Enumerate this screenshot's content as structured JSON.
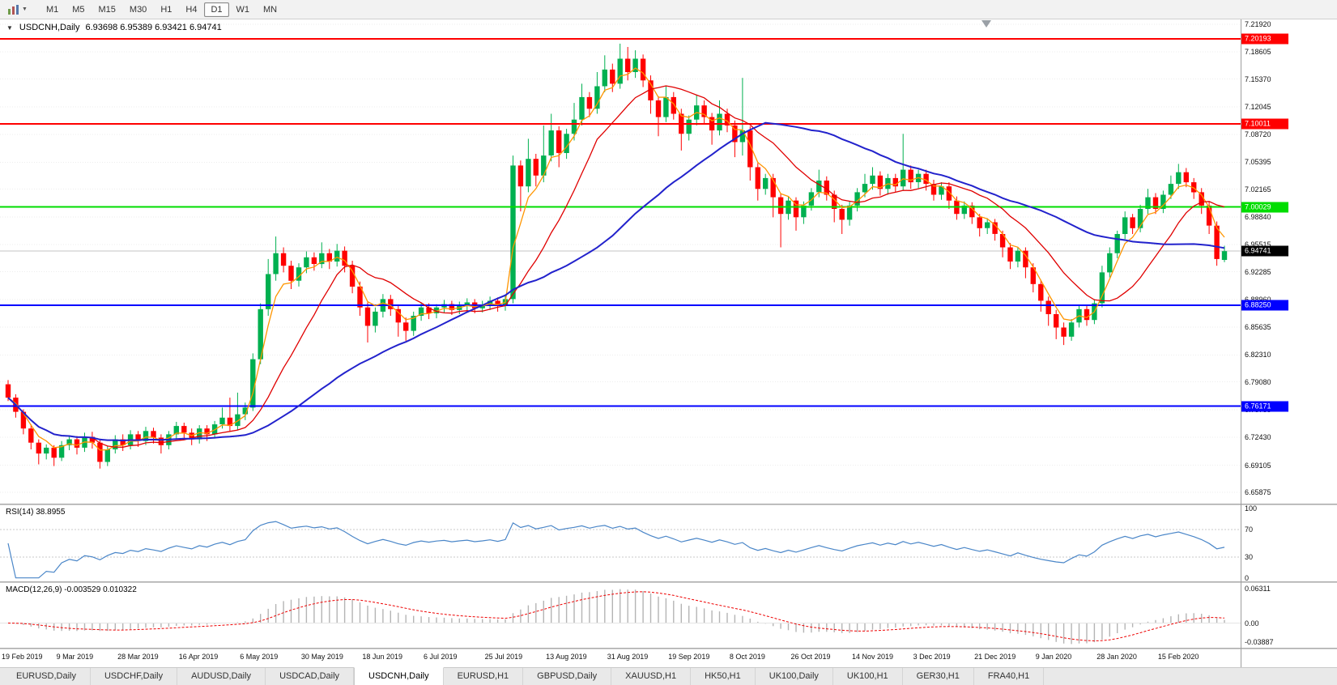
{
  "toolbar": {
    "timeframes": [
      "M1",
      "M5",
      "M15",
      "M30",
      "H1",
      "H4",
      "D1",
      "W1",
      "MN"
    ],
    "active_timeframe": "D1"
  },
  "tabs": {
    "items": [
      "EURUSD,Daily",
      "USDCHF,Daily",
      "AUDUSD,Daily",
      "USDCAD,Daily",
      "USDCNH,Daily",
      "EURUSD,H1",
      "GBPUSD,Daily",
      "XAUUSD,H1",
      "HK50,H1",
      "UK100,Daily",
      "UK100,H1",
      "GER30,H1",
      "FRA40,H1"
    ],
    "active": "USDCNH,Daily"
  },
  "colors": {
    "candle_up": "#00b050",
    "candle_down": "#ff0000",
    "rsi": "#4a86c8",
    "macd_hist": "#b4b4b4",
    "macd_signal": "#ee0000",
    "current_badge_bg": "#000000",
    "line_red": "#ff0000",
    "line_green": "#00dd00",
    "line_blue": "#0000ff"
  },
  "chart_data": {
    "type": "candlestick",
    "title": "USDCNH,Daily",
    "quote": "6.93698 6.95389 6.93421 6.94741",
    "last_quote": {
      "open": "6.93698",
      "high": "6.95389",
      "low": "6.93421",
      "close": "6.94741"
    },
    "y_axis_ticks": [
      "7.21920",
      "7.18605",
      "7.15370",
      "7.12045",
      "7.08720",
      "7.05395",
      "7.02165",
      "6.98840",
      "6.95515",
      "6.92285",
      "6.88960",
      "6.85635",
      "6.82310",
      "6.79080",
      "6.75755",
      "6.72430",
      "6.69105",
      "6.65875"
    ],
    "x_axis_labels": [
      "19 Feb 2019",
      "9 Mar 2019",
      "28 Mar 2019",
      "16 Apr 2019",
      "6 May 2019",
      "30 May 2019",
      "18 Jun 2019",
      "6 Jul 2019",
      "25 Jul 2019",
      "13 Aug 2019",
      "31 Aug 2019",
      "19 Sep 2019",
      "8 Oct 2019",
      "26 Oct 2019",
      "14 Nov 2019",
      "3 Dec 2019",
      "21 Dec 2019",
      "9 Jan 2020",
      "28 Jan 2020",
      "15 Feb 2020"
    ],
    "h_lines": [
      {
        "price": 7.20193,
        "color": "#ff0000",
        "label": "7.20193"
      },
      {
        "price": 7.10011,
        "color": "#ff0000",
        "label": "7.10011"
      },
      {
        "price": 7.00029,
        "color": "#00dd00",
        "label": "7.00029"
      },
      {
        "price": 6.8825,
        "color": "#0000ff",
        "label": "6.88250"
      },
      {
        "price": 6.76171,
        "color": "#0000ff",
        "label": "6.76171"
      }
    ],
    "current_price_badge": {
      "price": 6.94741,
      "label": "6.94741"
    },
    "moving_averages": [
      {
        "name": "fast-ma",
        "color": "#ff9500",
        "period": 4,
        "method": "ema",
        "width": 1.3
      },
      {
        "name": "mid-ma",
        "color": "#e00000",
        "period": 12,
        "method": "sma",
        "width": 1.3
      },
      {
        "name": "slow-ma",
        "color": "#2222cc",
        "period": 34,
        "method": "sma",
        "width": 2
      }
    ],
    "indicators": {
      "rsi": {
        "label": "RSI(14) 38.8955",
        "period": 14,
        "value": "38.8955",
        "ticks": [
          "100",
          "70",
          "30",
          "0"
        ],
        "levels": [
          70,
          30
        ]
      },
      "macd": {
        "label": "MACD(12,26,9) -0.003529 0.010322",
        "fast": 12,
        "slow": 26,
        "signal": 9,
        "values": [
          "-0.003529",
          "0.010322"
        ],
        "ticks": [
          "0.06311",
          "0.00",
          "-0.03887"
        ]
      }
    },
    "candles": [
      [
        6.788,
        6.793,
        6.768,
        6.772
      ],
      [
        6.772,
        6.776,
        6.748,
        6.755
      ],
      [
        6.755,
        6.758,
        6.728,
        6.735
      ],
      [
        6.735,
        6.74,
        6.71,
        6.718
      ],
      [
        6.718,
        6.722,
        6.692,
        6.705
      ],
      [
        6.705,
        6.716,
        6.698,
        6.712
      ],
      [
        6.712,
        6.715,
        6.69,
        6.7
      ],
      [
        6.7,
        6.72,
        6.696,
        6.715
      ],
      [
        6.715,
        6.727,
        6.709,
        6.722
      ],
      [
        6.722,
        6.726,
        6.704,
        6.712
      ],
      [
        6.712,
        6.73,
        6.707,
        6.725
      ],
      [
        6.725,
        6.731,
        6.711,
        6.718
      ],
      [
        6.718,
        6.721,
        6.687,
        6.695
      ],
      [
        6.695,
        6.714,
        6.69,
        6.71
      ],
      [
        6.71,
        6.727,
        6.705,
        6.722
      ],
      [
        6.722,
        6.728,
        6.708,
        6.715
      ],
      [
        6.715,
        6.733,
        6.71,
        6.728
      ],
      [
        6.728,
        6.732,
        6.713,
        6.72
      ],
      [
        6.72,
        6.737,
        6.715,
        6.732
      ],
      [
        6.732,
        6.736,
        6.717,
        6.724
      ],
      [
        6.724,
        6.728,
        6.705,
        6.715
      ],
      [
        6.715,
        6.732,
        6.71,
        6.728
      ],
      [
        6.728,
        6.743,
        6.722,
        6.738
      ],
      [
        6.738,
        6.742,
        6.723,
        6.73
      ],
      [
        6.73,
        6.735,
        6.715,
        6.722
      ],
      [
        6.722,
        6.739,
        6.717,
        6.735
      ],
      [
        6.735,
        6.739,
        6.72,
        6.728
      ],
      [
        6.728,
        6.744,
        6.723,
        6.74
      ],
      [
        6.74,
        6.76,
        6.735,
        6.748
      ],
      [
        6.748,
        6.772,
        6.732,
        6.738
      ],
      [
        6.738,
        6.778,
        6.733,
        6.752
      ],
      [
        6.752,
        6.766,
        6.745,
        6.76
      ],
      [
        6.76,
        6.825,
        6.756,
        6.818
      ],
      [
        6.818,
        6.885,
        6.812,
        6.878
      ],
      [
        6.878,
        6.938,
        6.87,
        6.92
      ],
      [
        6.92,
        6.965,
        6.912,
        6.945
      ],
      [
        6.945,
        6.952,
        6.922,
        6.93
      ],
      [
        6.93,
        6.936,
        6.902,
        6.912
      ],
      [
        6.912,
        6.933,
        6.905,
        6.928
      ],
      [
        6.928,
        6.947,
        6.921,
        6.94
      ],
      [
        6.94,
        6.946,
        6.924,
        6.932
      ],
      [
        6.932,
        6.958,
        6.927,
        6.945
      ],
      [
        6.945,
        6.95,
        6.926,
        6.935
      ],
      [
        6.935,
        6.956,
        6.929,
        6.948
      ],
      [
        6.948,
        6.953,
        6.922,
        6.93
      ],
      [
        6.93,
        6.936,
        6.897,
        6.905
      ],
      [
        6.905,
        6.911,
        6.87,
        6.88
      ],
      [
        6.88,
        6.886,
        6.838,
        6.858
      ],
      [
        6.858,
        6.88,
        6.85,
        6.875
      ],
      [
        6.875,
        6.896,
        6.868,
        6.89
      ],
      [
        6.89,
        6.895,
        6.87,
        6.878
      ],
      [
        6.878,
        6.883,
        6.845,
        6.862
      ],
      [
        6.862,
        6.868,
        6.84,
        6.852
      ],
      [
        6.852,
        6.875,
        6.846,
        6.87
      ],
      [
        6.87,
        6.886,
        6.864,
        6.88
      ],
      [
        6.88,
        6.885,
        6.866,
        6.873
      ],
      [
        6.873,
        6.884,
        6.867,
        6.88
      ],
      [
        6.88,
        6.889,
        6.874,
        6.884
      ],
      [
        6.884,
        6.888,
        6.871,
        6.877
      ],
      [
        6.877,
        6.887,
        6.872,
        6.882
      ],
      [
        6.882,
        6.891,
        6.876,
        6.886
      ],
      [
        6.886,
        6.89,
        6.873,
        6.879
      ],
      [
        6.879,
        6.888,
        6.874,
        6.883
      ],
      [
        6.883,
        6.893,
        6.877,
        6.888
      ],
      [
        6.888,
        6.892,
        6.875,
        6.882
      ],
      [
        6.882,
        6.895,
        6.876,
        6.89
      ],
      [
        6.89,
        7.062,
        6.885,
        7.05
      ],
      [
        7.05,
        7.056,
        6.995,
        7.025
      ],
      [
        7.025,
        7.082,
        7.018,
        7.058
      ],
      [
        7.058,
        7.064,
        7.025,
        7.038
      ],
      [
        7.038,
        7.098,
        7.03,
        7.062
      ],
      [
        7.062,
        7.112,
        7.055,
        7.092
      ],
      [
        7.092,
        7.097,
        7.048,
        7.065
      ],
      [
        7.065,
        7.094,
        7.058,
        7.088
      ],
      [
        7.088,
        7.125,
        7.08,
        7.105
      ],
      [
        7.105,
        7.148,
        7.098,
        7.132
      ],
      [
        7.132,
        7.138,
        7.108,
        7.118
      ],
      [
        7.118,
        7.162,
        7.112,
        7.145
      ],
      [
        7.145,
        7.182,
        7.138,
        7.165
      ],
      [
        7.165,
        7.172,
        7.138,
        7.148
      ],
      [
        7.148,
        7.196,
        7.142,
        7.178
      ],
      [
        7.178,
        7.192,
        7.152,
        7.162
      ],
      [
        7.162,
        7.188,
        7.155,
        7.178
      ],
      [
        7.178,
        7.183,
        7.144,
        7.152
      ],
      [
        7.152,
        7.158,
        7.112,
        7.128
      ],
      [
        7.128,
        7.133,
        7.085,
        7.108
      ],
      [
        7.108,
        7.145,
        7.102,
        7.132
      ],
      [
        7.132,
        7.138,
        7.105,
        7.112
      ],
      [
        7.112,
        7.118,
        7.068,
        7.088
      ],
      [
        7.088,
        7.11,
        7.08,
        7.105
      ],
      [
        7.105,
        7.135,
        7.098,
        7.122
      ],
      [
        7.122,
        7.128,
        7.1,
        7.108
      ],
      [
        7.108,
        7.113,
        7.075,
        7.092
      ],
      [
        7.092,
        7.128,
        7.086,
        7.112
      ],
      [
        7.112,
        7.118,
        7.09,
        7.098
      ],
      [
        7.098,
        7.104,
        7.06,
        7.078
      ],
      [
        7.078,
        7.155,
        7.062,
        7.092
      ],
      [
        7.092,
        7.097,
        7.032,
        7.048
      ],
      [
        7.048,
        7.053,
        7.008,
        7.022
      ],
      [
        7.022,
        7.04,
        7.015,
        7.035
      ],
      [
        7.035,
        7.04,
        6.988,
        7.012
      ],
      [
        7.012,
        7.017,
        6.952,
        6.992
      ],
      [
        6.992,
        7.013,
        6.985,
        7.008
      ],
      [
        7.008,
        7.012,
        6.972,
        6.988
      ],
      [
        6.988,
        7.007,
        6.98,
        7.002
      ],
      [
        7.002,
        7.023,
        6.996,
        7.018
      ],
      [
        7.018,
        7.045,
        7.012,
        7.032
      ],
      [
        7.032,
        7.037,
        7.008,
        7.015
      ],
      [
        7.015,
        7.02,
        6.982,
        6.998
      ],
      [
        6.998,
        7.003,
        6.968,
        6.985
      ],
      [
        6.985,
        7.007,
        6.978,
        7.002
      ],
      [
        7.002,
        7.023,
        6.995,
        7.018
      ],
      [
        7.018,
        7.04,
        7.012,
        7.028
      ],
      [
        7.028,
        7.048,
        7.021,
        7.038
      ],
      [
        7.038,
        7.043,
        7.014,
        7.022
      ],
      [
        7.022,
        7.04,
        7.015,
        7.035
      ],
      [
        7.035,
        7.04,
        7.018,
        7.025
      ],
      [
        7.025,
        7.088,
        7.02,
        7.045
      ],
      [
        7.045,
        7.05,
        7.022,
        7.03
      ],
      [
        7.03,
        7.045,
        7.023,
        7.04
      ],
      [
        7.04,
        7.045,
        7.02,
        7.028
      ],
      [
        7.028,
        7.033,
        7.008,
        7.015
      ],
      [
        7.015,
        7.03,
        7.009,
        7.025
      ],
      [
        7.025,
        7.03,
        6.998,
        7.008
      ],
      [
        7.008,
        7.013,
        6.985,
        6.992
      ],
      [
        6.992,
        7.007,
        6.986,
        7.002
      ],
      [
        7.002,
        7.006,
        6.98,
        6.988
      ],
      [
        6.988,
        6.992,
        6.965,
        6.975
      ],
      [
        6.975,
        6.987,
        6.968,
        6.982
      ],
      [
        6.982,
        6.986,
        6.96,
        6.968
      ],
      [
        6.968,
        6.972,
        6.94,
        6.952
      ],
      [
        6.952,
        6.957,
        6.926,
        6.935
      ],
      [
        6.935,
        6.952,
        6.928,
        6.948
      ],
      [
        6.948,
        6.952,
        6.915,
        6.928
      ],
      [
        6.928,
        6.933,
        6.898,
        6.908
      ],
      [
        6.908,
        6.913,
        6.875,
        6.888
      ],
      [
        6.888,
        6.893,
        6.858,
        6.872
      ],
      [
        6.872,
        6.877,
        6.842,
        6.856
      ],
      [
        6.856,
        6.862,
        6.835,
        6.845
      ],
      [
        6.845,
        6.866,
        6.84,
        6.862
      ],
      [
        6.862,
        6.883,
        6.856,
        6.878
      ],
      [
        6.878,
        6.882,
        6.858,
        6.865
      ],
      [
        6.865,
        6.89,
        6.86,
        6.885
      ],
      [
        6.885,
        6.93,
        6.88,
        6.922
      ],
      [
        6.922,
        6.952,
        6.916,
        6.945
      ],
      [
        6.945,
        6.972,
        6.939,
        6.968
      ],
      [
        6.968,
        6.995,
        6.962,
        6.988
      ],
      [
        6.988,
        6.992,
        6.968,
        6.975
      ],
      [
        6.975,
        7.003,
        6.97,
        6.998
      ],
      [
        6.998,
        7.022,
        6.992,
        7.012
      ],
      [
        7.012,
        7.017,
        6.992,
        6.998
      ],
      [
        6.998,
        7.02,
        6.993,
        7.015
      ],
      [
        7.015,
        7.038,
        7.01,
        7.028
      ],
      [
        7.028,
        7.052,
        7.022,
        7.042
      ],
      [
        7.042,
        7.047,
        7.024,
        7.03
      ],
      [
        7.03,
        7.035,
        7.01,
        7.018
      ],
      [
        7.018,
        7.023,
        6.992,
        7.002
      ],
      [
        7.002,
        7.007,
        6.968,
        6.978
      ],
      [
        6.978,
        6.983,
        6.93,
        6.938
      ],
      [
        6.93698,
        6.95389,
        6.93421,
        6.94741
      ]
    ]
  }
}
